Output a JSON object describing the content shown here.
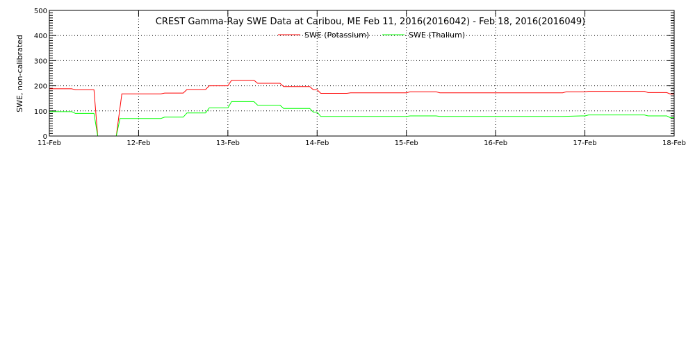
{
  "chart_data": {
    "type": "line",
    "title": "CREST Gamma-Ray SWE Data at Caribou, ME   Feb 11, 2016(2016042) - Feb 18, 2016(2016049)",
    "ylabel": "SWE, non-calibrated",
    "xlabel": "",
    "ylim": [
      0,
      500
    ],
    "xlim": [
      "2016-02-11",
      "2016-02-18"
    ],
    "y_ticks": [
      "0",
      "100",
      "200",
      "300",
      "400",
      "500"
    ],
    "x_ticks": [
      "11-Feb",
      "12-Feb",
      "13-Feb",
      "14-Feb",
      "15-Feb",
      "16-Feb",
      "17-Feb",
      "18-Feb"
    ],
    "grid": true,
    "legend_position": "top-center",
    "series": [
      {
        "name": "SWE (Potassium)",
        "color": "#ff0000",
        "points": [
          [
            "2016-02-11 00:00",
            188
          ],
          [
            "2016-02-11 06:00",
            188
          ],
          [
            "2016-02-11 07:00",
            184
          ],
          [
            "2016-02-11 12:00",
            184
          ],
          [
            "2016-02-11 13:00",
            0
          ],
          [
            "2016-02-11 18:00",
            0
          ],
          [
            "2016-02-11 19:30",
            168
          ],
          [
            "2016-02-12 06:00",
            168
          ],
          [
            "2016-02-12 07:00",
            171
          ],
          [
            "2016-02-12 12:00",
            171
          ],
          [
            "2016-02-12 13:00",
            185
          ],
          [
            "2016-02-12 18:00",
            185
          ],
          [
            "2016-02-12 19:00",
            200
          ],
          [
            "2016-02-13 00:00",
            200
          ],
          [
            "2016-02-13 01:00",
            222
          ],
          [
            "2016-02-13 07:00",
            222
          ],
          [
            "2016-02-13 08:00",
            210
          ],
          [
            "2016-02-13 14:00",
            210
          ],
          [
            "2016-02-13 15:00",
            197
          ],
          [
            "2016-02-13 22:00",
            197
          ],
          [
            "2016-02-13 23:00",
            184
          ],
          [
            "2016-02-14 00:00",
            184
          ],
          [
            "2016-02-14 01:00",
            170
          ],
          [
            "2016-02-14 08:00",
            170
          ],
          [
            "2016-02-14 09:00",
            172
          ],
          [
            "2016-02-15 00:00",
            172
          ],
          [
            "2016-02-15 01:00",
            176
          ],
          [
            "2016-02-15 08:00",
            176
          ],
          [
            "2016-02-15 09:00",
            172
          ],
          [
            "2016-02-16 18:00",
            172
          ],
          [
            "2016-02-16 19:00",
            176
          ],
          [
            "2016-02-17 00:00",
            176
          ],
          [
            "2016-02-17 01:00",
            178
          ],
          [
            "2016-02-17 16:00",
            178
          ],
          [
            "2016-02-17 17:00",
            173
          ],
          [
            "2016-02-17 22:00",
            173
          ],
          [
            "2016-02-17 23:00",
            167
          ],
          [
            "2016-02-18 00:00",
            167
          ]
        ]
      },
      {
        "name": "SWE (Thalium)",
        "color": "#00ff00",
        "points": [
          [
            "2016-02-11 00:00",
            97
          ],
          [
            "2016-02-11 06:00",
            97
          ],
          [
            "2016-02-11 07:00",
            90
          ],
          [
            "2016-02-11 12:00",
            90
          ],
          [
            "2016-02-11 13:00",
            0
          ],
          [
            "2016-02-11 18:00",
            0
          ],
          [
            "2016-02-11 19:00",
            70
          ],
          [
            "2016-02-12 06:00",
            70
          ],
          [
            "2016-02-12 07:00",
            75
          ],
          [
            "2016-02-12 12:00",
            75
          ],
          [
            "2016-02-12 13:00",
            92
          ],
          [
            "2016-02-12 18:00",
            92
          ],
          [
            "2016-02-12 19:00",
            112
          ],
          [
            "2016-02-13 00:00",
            112
          ],
          [
            "2016-02-13 01:00",
            137
          ],
          [
            "2016-02-13 07:00",
            137
          ],
          [
            "2016-02-13 08:00",
            123
          ],
          [
            "2016-02-13 14:00",
            123
          ],
          [
            "2016-02-13 15:00",
            110
          ],
          [
            "2016-02-13 22:00",
            110
          ],
          [
            "2016-02-13 23:00",
            95
          ],
          [
            "2016-02-14 00:00",
            95
          ],
          [
            "2016-02-14 01:00",
            78
          ],
          [
            "2016-02-15 00:00",
            78
          ],
          [
            "2016-02-15 01:00",
            80
          ],
          [
            "2016-02-15 08:00",
            80
          ],
          [
            "2016-02-15 09:00",
            78
          ],
          [
            "2016-02-16 18:00",
            78
          ],
          [
            "2016-02-16 23:00",
            80
          ],
          [
            "2016-02-17 00:00",
            80
          ],
          [
            "2016-02-17 01:00",
            84
          ],
          [
            "2016-02-17 16:00",
            84
          ],
          [
            "2016-02-17 17:00",
            80
          ],
          [
            "2016-02-17 22:00",
            80
          ],
          [
            "2016-02-17 23:00",
            73
          ],
          [
            "2016-02-18 00:00",
            73
          ]
        ]
      }
    ]
  }
}
